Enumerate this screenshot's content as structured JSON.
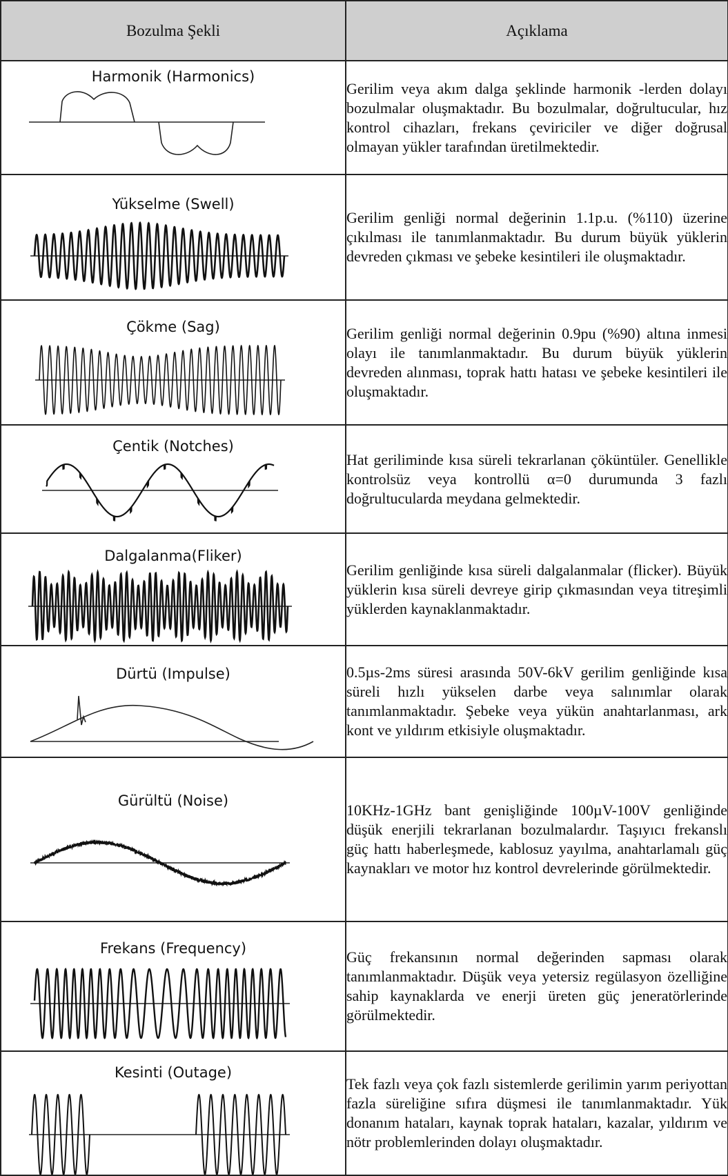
{
  "header": {
    "col1": "Bozulma Şekli",
    "col2": "Açıklama"
  },
  "rows": [
    {
      "title": "Harmonik (Harmonics)",
      "icon": "harmonic-waveform",
      "description": "Gerilim veya akım dalga şeklinde harmonik -lerden dolayı bozulmalar oluşmaktadır. Bu bozulmalar, doğrultucular, hız kontrol cihazları, frekans çeviriciler ve diğer doğrusal olmayan yükler tarafından üretilmektedir."
    },
    {
      "title": "Yükselme (Swell)",
      "icon": "swell-waveform",
      "description": "Gerilim genliği normal değerinin 1.1p.u. (%110) üzerine çıkılması ile tanımlanmaktadır. Bu durum büyük yüklerin devreden çıkması ve şebeke kesintileri ile oluşmaktadır."
    },
    {
      "title": "Çökme (Sag)",
      "icon": "sag-waveform",
      "description": "Gerilim genliği normal değerinin 0.9pu (%90) altına inmesi olayı ile tanımlanmaktadır. Bu durum büyük yüklerin devreden alınması, toprak hattı hatası ve şebeke kesintileri ile oluşmaktadır."
    },
    {
      "title": "Çentik (Notches)",
      "icon": "notches-waveform",
      "description": "Hat geriliminde kısa süreli tekrarlanan çöküntüler. Genellikle kontrolsüz veya kontrollü α=0 durumunda 3 fazlı doğrultucularda meydana gelmektedir."
    },
    {
      "title": "Dalgalanma(Fliker)",
      "icon": "flicker-waveform",
      "description": "Gerilim genliğinde kısa süreli dalgalanmalar (flicker). Büyük yüklerin kısa süreli devreye girip çıkmasından veya titreşimli yüklerden kaynaklanmaktadır."
    },
    {
      "title": "Dürtü (Impulse)",
      "icon": "impulse-waveform",
      "description": "0.5µs-2ms süresi arasında 50V-6kV gerilim genliğinde kısa süreli hızlı yükselen darbe veya salınımlar olarak tanımlanmaktadır. Şebeke veya yükün anahtarlanması, ark kont ve yıldırım etkisiyle oluşmaktadır."
    },
    {
      "title": "Gürültü (Noise)",
      "icon": "noise-waveform",
      "description": "10KHz-1GHz bant genişliğinde 100µV-100V genliğinde düşük enerjili tekrarlanan bozulmalardır. Taşıyıcı frekanslı güç hattı haberleşmede, kablosuz yayılma, anahtarlamalı güç kaynakları ve motor hız kontrol devrelerinde görülmektedir."
    },
    {
      "title": "Frekans (Frequency)",
      "icon": "frequency-waveform",
      "description": "Güç frekansının normal değerinden sapması olarak tanımlanmaktadır. Düşük veya yetersiz regülasyon özelliğine sahip kaynaklarda ve enerji üreten güç jeneratörlerinde görülmektedir."
    },
    {
      "title": "Kesinti (Outage)",
      "icon": "outage-waveform",
      "description": "Tek fazlı veya çok fazlı sistemlerde gerilimin yarım periyottan fazla süreliğine sıfıra düşmesi ile tanımlanmaktadır. Yük donanım hataları, kaynak toprak hataları, kazalar, yıldırım ve nötr problemlerinden dolayı oluşmaktadır."
    }
  ]
}
